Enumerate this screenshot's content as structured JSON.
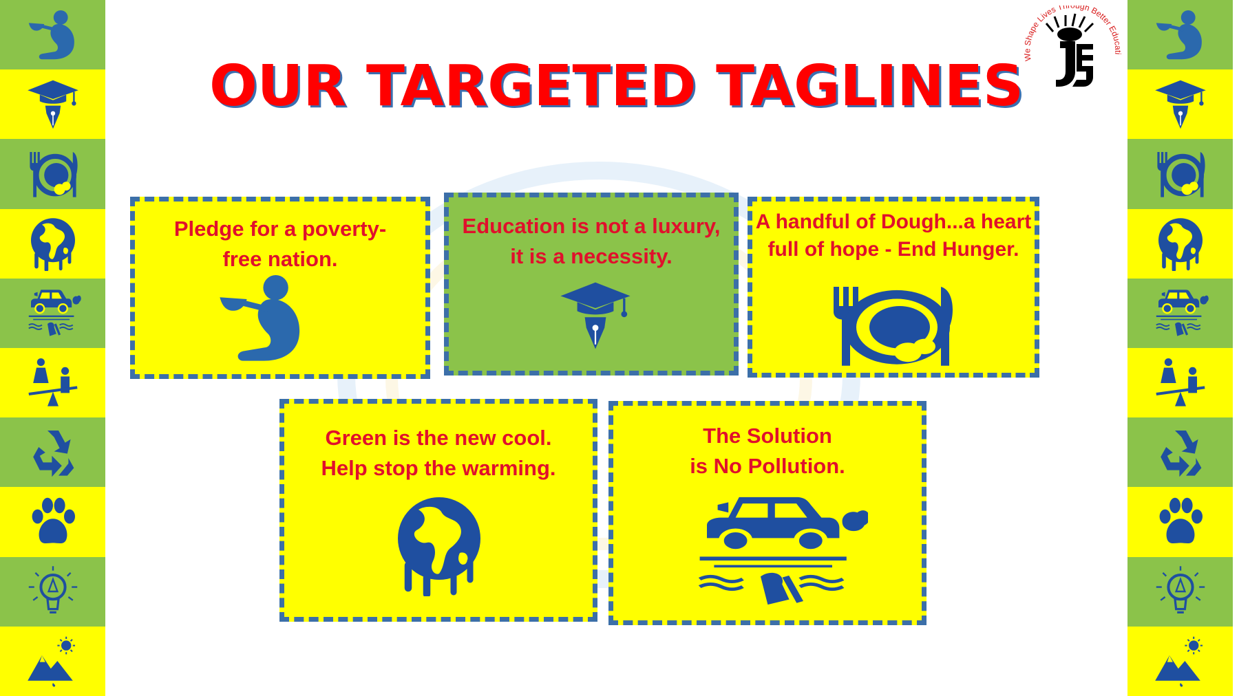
{
  "title": "OUR TARGETED TAGLINES",
  "logo": {
    "curve_text": "We Shape Lives Through Better Education",
    "icon": "djs-sun-logo-icon"
  },
  "colors": {
    "title_red": "#ff0000",
    "title_shadow": "#3a6fb0",
    "card_yellow": "#ffff00",
    "card_green": "#8bc34a",
    "card_border": "#3c6fa8",
    "tagline_text": "#e0102c",
    "icon_blue": "#1f4fa0"
  },
  "side_strip_icons": [
    "beggar-icon",
    "graduation-pen-icon",
    "plate-fork-knife-icon",
    "melting-globe-icon",
    "polluting-car-icon",
    "gender-equality-icon",
    "recycle-icon",
    "paw-icon",
    "lightbulb-icon",
    "mountain-sun-icon"
  ],
  "cards": [
    {
      "text": "Pledge for a poverty-\nfree nation.",
      "icon": "beggar-icon"
    },
    {
      "text": "Education is not a luxury,\nit is a necessity.",
      "icon": "graduation-pen-icon"
    },
    {
      "text": "A handful of Dough...a heart\nfull of hope - End Hunger.",
      "icon": "plate-fork-knife-icon"
    },
    {
      "text": "Green is the new cool.\nHelp stop the warming.",
      "icon": "melting-globe-icon"
    },
    {
      "text": "The Solution\nis No Pollution.",
      "icon": "polluting-car-icon"
    }
  ]
}
